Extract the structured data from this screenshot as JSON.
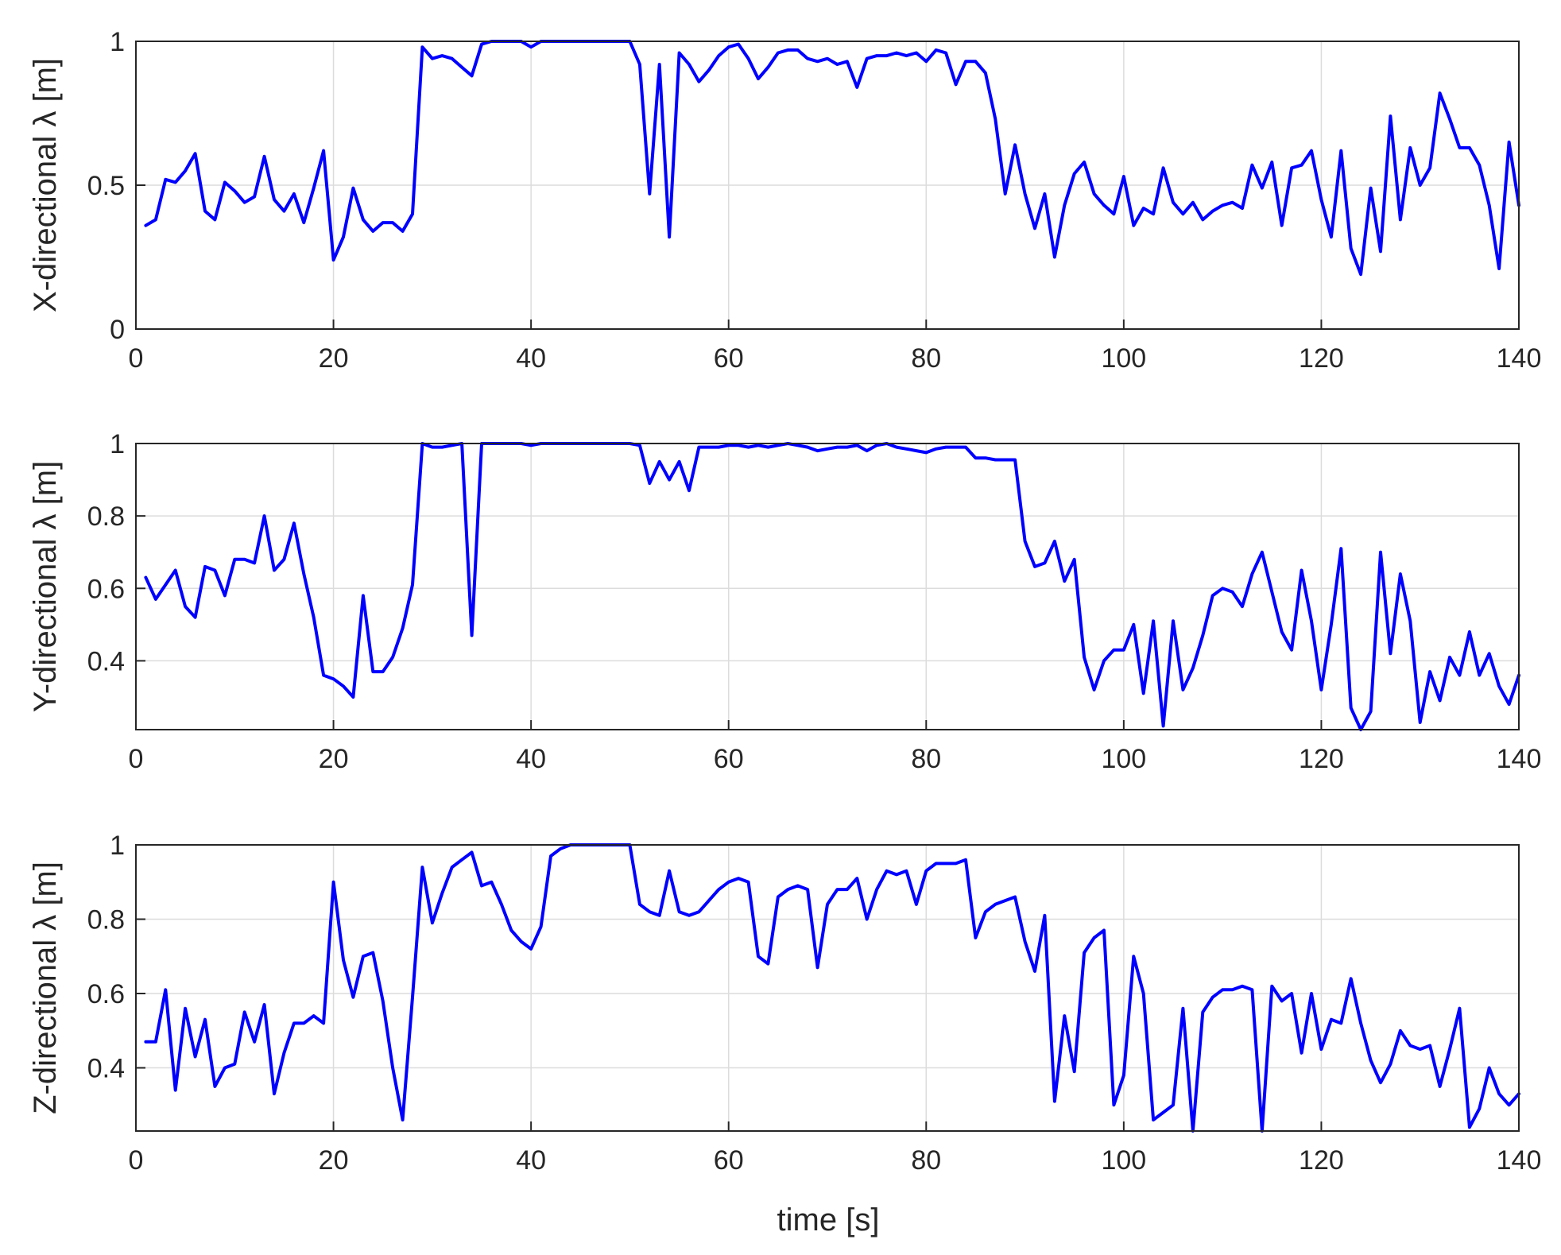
{
  "figure": {
    "xlabel": "time [s]"
  },
  "chart_data": [
    {
      "type": "line",
      "ylabel": "X-directional λ [m]",
      "xlim": [
        0,
        140
      ],
      "ylim": [
        0,
        1
      ],
      "xticks": [
        "0",
        "20",
        "40",
        "60",
        "80",
        "100",
        "120",
        "140"
      ],
      "yticks": [
        {
          "v": 0,
          "label": "0"
        },
        {
          "v": 0.5,
          "label": "0.5"
        },
        {
          "v": 1,
          "label": "1"
        }
      ],
      "grid": true,
      "color": "#0000ff",
      "x_start": 1,
      "values": [
        0.36,
        0.38,
        0.52,
        0.51,
        0.55,
        0.61,
        0.41,
        0.38,
        0.51,
        0.48,
        0.44,
        0.46,
        0.6,
        0.45,
        0.41,
        0.47,
        0.37,
        0.49,
        0.62,
        0.24,
        0.32,
        0.49,
        0.38,
        0.34,
        0.37,
        0.37,
        0.34,
        0.4,
        0.98,
        0.94,
        0.95,
        0.94,
        0.91,
        0.88,
        0.99,
        1.0,
        1.0,
        1.0,
        1.0,
        0.98,
        1.0,
        1.0,
        1.0,
        1.0,
        1.0,
        1.0,
        1.0,
        1.0,
        1.0,
        1.0,
        0.92,
        0.47,
        0.92,
        0.32,
        0.96,
        0.92,
        0.86,
        0.9,
        0.95,
        0.98,
        0.99,
        0.94,
        0.87,
        0.91,
        0.96,
        0.97,
        0.97,
        0.94,
        0.93,
        0.94,
        0.92,
        0.93,
        0.84,
        0.94,
        0.95,
        0.95,
        0.96,
        0.95,
        0.96,
        0.93,
        0.97,
        0.96,
        0.85,
        0.93,
        0.93,
        0.89,
        0.73,
        0.47,
        0.64,
        0.47,
        0.35,
        0.47,
        0.25,
        0.43,
        0.54,
        0.58,
        0.47,
        0.43,
        0.4,
        0.53,
        0.36,
        0.42,
        0.4,
        0.56,
        0.44,
        0.4,
        0.44,
        0.38,
        0.41,
        0.43,
        0.44,
        0.42,
        0.57,
        0.49,
        0.58,
        0.36,
        0.56,
        0.57,
        0.62,
        0.45,
        0.32,
        0.62,
        0.28,
        0.19,
        0.49,
        0.27,
        0.74,
        0.38,
        0.63,
        0.5,
        0.56,
        0.82,
        0.73,
        0.63,
        0.63,
        0.57,
        0.43,
        0.21,
        0.65,
        0.43
      ]
    },
    {
      "type": "line",
      "ylabel": "Y-directional λ [m]",
      "xlim": [
        0,
        140
      ],
      "ylim": [
        0.21,
        1
      ],
      "xticks": [
        "0",
        "20",
        "40",
        "60",
        "80",
        "100",
        "120",
        "140"
      ],
      "yticks": [
        {
          "v": 0.4,
          "label": "0.4"
        },
        {
          "v": 0.6,
          "label": "0.6"
        },
        {
          "v": 0.8,
          "label": "0.8"
        },
        {
          "v": 1,
          "label": "1"
        }
      ],
      "grid": true,
      "color": "#0000ff",
      "x_start": 1,
      "values": [
        0.63,
        0.57,
        0.61,
        0.65,
        0.55,
        0.52,
        0.66,
        0.65,
        0.58,
        0.68,
        0.68,
        0.67,
        0.8,
        0.65,
        0.68,
        0.78,
        0.64,
        0.52,
        0.36,
        0.35,
        0.33,
        0.3,
        0.58,
        0.37,
        0.37,
        0.41,
        0.49,
        0.61,
        1.0,
        0.99,
        0.99,
        0.995,
        1.0,
        0.47,
        1.0,
        1.0,
        1.0,
        1.0,
        1.0,
        0.995,
        1.0,
        1.0,
        1.0,
        1.0,
        1.0,
        1.0,
        1.0,
        1.0,
        1.0,
        1.0,
        0.995,
        0.89,
        0.95,
        0.9,
        0.95,
        0.87,
        0.99,
        0.99,
        0.99,
        0.995,
        0.995,
        0.99,
        0.995,
        0.99,
        0.995,
        1.0,
        0.995,
        0.99,
        0.98,
        0.985,
        0.99,
        0.99,
        0.995,
        0.98,
        0.995,
        1.0,
        0.99,
        0.985,
        0.98,
        0.975,
        0.985,
        0.99,
        0.99,
        0.99,
        0.96,
        0.96,
        0.955,
        0.955,
        0.955,
        0.73,
        0.66,
        0.67,
        0.73,
        0.62,
        0.68,
        0.41,
        0.32,
        0.4,
        0.43,
        0.43,
        0.5,
        0.31,
        0.51,
        0.22,
        0.51,
        0.32,
        0.38,
        0.47,
        0.58,
        0.6,
        0.59,
        0.55,
        0.64,
        0.7,
        0.59,
        0.48,
        0.43,
        0.65,
        0.51,
        0.32,
        0.5,
        0.71,
        0.27,
        0.21,
        0.26,
        0.7,
        0.42,
        0.64,
        0.51,
        0.23,
        0.37,
        0.29,
        0.41,
        0.36,
        0.48,
        0.36,
        0.42,
        0.33,
        0.28,
        0.36
      ]
    },
    {
      "type": "line",
      "ylabel": "Z-directional λ [m]",
      "xlim": [
        0,
        140
      ],
      "ylim": [
        0.23,
        1
      ],
      "xticks": [
        "0",
        "20",
        "40",
        "60",
        "80",
        "100",
        "120",
        "140"
      ],
      "yticks": [
        {
          "v": 0.4,
          "label": "0.4"
        },
        {
          "v": 0.6,
          "label": "0.6"
        },
        {
          "v": 0.8,
          "label": "0.8"
        },
        {
          "v": 1,
          "label": "1"
        }
      ],
      "grid": true,
      "color": "#0000ff",
      "x_start": 1,
      "values": [
        0.47,
        0.47,
        0.61,
        0.34,
        0.56,
        0.43,
        0.53,
        0.35,
        0.4,
        0.41,
        0.55,
        0.47,
        0.57,
        0.33,
        0.44,
        0.52,
        0.52,
        0.54,
        0.52,
        0.9,
        0.69,
        0.59,
        0.7,
        0.71,
        0.58,
        0.4,
        0.26,
        0.59,
        0.94,
        0.79,
        0.87,
        0.94,
        0.96,
        0.98,
        0.89,
        0.9,
        0.84,
        0.77,
        0.74,
        0.72,
        0.78,
        0.97,
        0.99,
        1.0,
        1.0,
        1.0,
        1.0,
        1.0,
        1.0,
        1.0,
        0.84,
        0.82,
        0.81,
        0.93,
        0.82,
        0.81,
        0.82,
        0.85,
        0.88,
        0.9,
        0.91,
        0.9,
        0.7,
        0.68,
        0.86,
        0.88,
        0.89,
        0.88,
        0.67,
        0.84,
        0.88,
        0.88,
        0.91,
        0.8,
        0.88,
        0.93,
        0.92,
        0.93,
        0.84,
        0.93,
        0.95,
        0.95,
        0.95,
        0.96,
        0.75,
        0.82,
        0.84,
        0.85,
        0.86,
        0.74,
        0.66,
        0.81,
        0.31,
        0.54,
        0.39,
        0.71,
        0.75,
        0.77,
        0.3,
        0.38,
        0.7,
        0.6,
        0.26,
        0.28,
        0.3,
        0.56,
        0.23,
        0.55,
        0.59,
        0.61,
        0.61,
        0.62,
        0.61,
        0.23,
        0.62,
        0.58,
        0.6,
        0.44,
        0.6,
        0.45,
        0.53,
        0.52,
        0.64,
        0.52,
        0.42,
        0.36,
        0.41,
        0.5,
        0.46,
        0.45,
        0.46,
        0.35,
        0.45,
        0.56,
        0.24,
        0.29,
        0.4,
        0.33,
        0.3,
        0.33
      ]
    }
  ]
}
